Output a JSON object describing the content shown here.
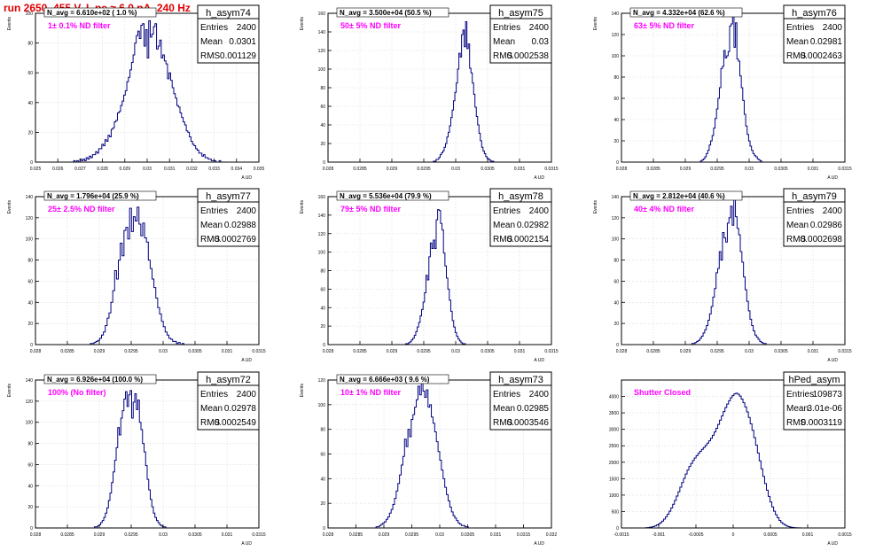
{
  "header": {
    "title": "run 2650,   455 V, I_pe ≈ 6.0 nA, 240 Hz",
    "title_color": "#e00000"
  },
  "labels": {
    "yaxis": "Events",
    "xaxis": "A UD",
    "entries": "Entries",
    "mean": "Mean",
    "rms": "RMS"
  },
  "colors": {
    "hist": "#000080",
    "annotation": "#ff00ff",
    "frame": "#000000",
    "grid": "#cccccc"
  },
  "chart_data": [
    {
      "type": "bar",
      "name": "h_asym74",
      "title": "h_asym74",
      "navg": "N_avg = 6.610e+02 ( 1.0 %)",
      "annotation": "1± 0.1% ND filter",
      "entries": "2400",
      "mean": "0.0301",
      "rms": "0.001129",
      "xlabel": "A UD",
      "ylabel": "Events",
      "xlim": [
        0.025,
        0.035
      ],
      "ylim": [
        0,
        100
      ],
      "xticks": [
        "0.025",
        "0.026",
        "0.027",
        "0.028",
        "0.029",
        "0.03",
        "0.031",
        "0.032",
        "0.033",
        "0.034",
        "0.035"
      ],
      "yticks": [
        "0",
        "20",
        "40",
        "60",
        "80",
        "100"
      ],
      "bins": {
        "lo": 0.0265,
        "hi": 0.0335,
        "n": 100,
        "values": [
          0,
          0,
          0,
          1,
          0,
          1,
          0,
          2,
          1,
          2,
          1,
          3,
          2,
          4,
          3,
          5,
          5,
          7,
          6,
          9,
          9,
          12,
          11,
          15,
          14,
          18,
          17,
          22,
          23,
          27,
          28,
          33,
          34,
          38,
          41,
          45,
          48,
          54,
          57,
          62,
          67,
          72,
          80,
          85,
          88,
          83,
          92,
          93,
          78,
          89,
          70,
          95,
          84,
          86,
          91,
          93,
          76,
          78,
          82,
          70,
          72,
          68,
          66,
          56,
          60,
          55,
          50,
          46,
          43,
          38,
          37,
          33,
          30,
          27,
          25,
          21,
          20,
          17,
          14,
          12,
          11,
          9,
          8,
          6,
          6,
          4,
          5,
          3,
          3,
          2,
          2,
          1,
          1,
          1,
          0,
          0,
          1,
          0,
          0,
          0
        ]
      }
    },
    {
      "type": "bar",
      "name": "h_asym75",
      "title": "h_asym75",
      "navg": "N_avg = 3.500e+04 (50.5 %)",
      "annotation": "50± 5% ND filter",
      "entries": "2400",
      "mean": "0.03",
      "rms": "0.0002538",
      "xlabel": "A UD",
      "ylabel": "Events",
      "xlim": [
        0.028,
        0.0315
      ],
      "ylim": [
        0,
        160
      ],
      "xticks": [
        "0.028",
        "0.0285",
        "0.029",
        "0.0295",
        "0.03",
        "0.0305",
        "0.031",
        "0.0315"
      ],
      "yticks": [
        "0",
        "20",
        "40",
        "60",
        "80",
        "100",
        "120",
        "140",
        "160"
      ],
      "bins": {
        "lo": 0.029,
        "hi": 0.0311,
        "n": 100,
        "values": [
          0,
          0,
          0,
          0,
          0,
          0,
          0,
          0,
          0,
          0,
          0,
          0,
          0,
          0,
          0,
          0,
          0,
          0,
          0,
          0,
          0,
          0,
          0,
          0,
          0,
          0,
          0,
          0,
          0,
          0,
          0,
          1,
          1,
          3,
          3,
          5,
          8,
          10,
          12,
          16,
          20,
          27,
          32,
          39,
          48,
          56,
          66,
          75,
          85,
          100,
          117,
          113,
          137,
          142,
          124,
          151,
          122,
          127,
          101,
          96,
          85,
          73,
          59,
          49,
          40,
          31,
          23,
          16,
          12,
          9,
          6,
          4,
          3,
          2,
          1,
          1,
          0,
          0,
          0,
          0,
          0,
          0,
          0,
          0,
          0,
          0,
          0,
          0,
          0,
          0,
          0,
          0,
          0,
          0,
          0,
          0,
          0,
          0,
          0,
          0
        ]
      }
    },
    {
      "type": "bar",
      "name": "h_asym76",
      "title": "h_asym76",
      "navg": "N_avg = 4.332e+04 (62.6 %)",
      "annotation": "63± 5% ND filter",
      "entries": "2400",
      "mean": "0.02981",
      "rms": "0.0002463",
      "xlabel": "A UD",
      "ylabel": "Events",
      "xlim": [
        0.028,
        0.0315
      ],
      "ylim": [
        0,
        140
      ],
      "xticks": [
        "0.028",
        "0.0285",
        "0.029",
        "0.0295",
        "0.03",
        "0.0305",
        "0.031",
        "0.0315"
      ],
      "yticks": [
        "0",
        "20",
        "40",
        "60",
        "80",
        "100",
        "120",
        "140"
      ],
      "bins": {
        "lo": 0.0291,
        "hi": 0.0307,
        "n": 70,
        "values": [
          0,
          0,
          0,
          0,
          0,
          0,
          1,
          2,
          3,
          5,
          8,
          11,
          16,
          20,
          25,
          32,
          41,
          50,
          60,
          70,
          88,
          90,
          105,
          98,
          100,
          104,
          128,
          130,
          139,
          108,
          131,
          97,
          95,
          81,
          70,
          58,
          45,
          34,
          26,
          20,
          15,
          11,
          8,
          6,
          5,
          3,
          2,
          1,
          0,
          0,
          0,
          0,
          0,
          0,
          0,
          0,
          0,
          0,
          0,
          0,
          0,
          0,
          0,
          0,
          0,
          0,
          0,
          0,
          0,
          0
        ]
      }
    },
    {
      "type": "bar",
      "name": "h_asym77",
      "title": "h_asym77",
      "navg": "N_avg = 1.796e+04 (25.9 %)",
      "annotation": "25± 2.5% ND filter",
      "entries": "2400",
      "mean": "0.02988",
      "rms": "0.0002769",
      "xlabel": "A UD",
      "ylabel": "Events",
      "xlim": [
        0.028,
        0.0315
      ],
      "ylim": [
        0,
        140
      ],
      "xticks": [
        "0.028",
        "0.0285",
        "0.029",
        "0.0295",
        "0.03",
        "0.0305",
        "0.031",
        "0.0315"
      ],
      "yticks": [
        "0",
        "20",
        "40",
        "60",
        "80",
        "100",
        "120",
        "140"
      ],
      "bins": {
        "lo": 0.0288,
        "hi": 0.031,
        "n": 75,
        "values": [
          0,
          0,
          1,
          1,
          2,
          3,
          4,
          6,
          9,
          12,
          18,
          25,
          30,
          40,
          51,
          70,
          62,
          80,
          96,
          84,
          108,
          111,
          100,
          129,
          107,
          121,
          117,
          130,
          114,
          103,
          115,
          101,
          97,
          80,
          72,
          62,
          54,
          44,
          35,
          29,
          22,
          17,
          12,
          9,
          6,
          5,
          3,
          3,
          1,
          2,
          0,
          1,
          0,
          0,
          0,
          0,
          0,
          0,
          0,
          0,
          0,
          0,
          0,
          0,
          0,
          0,
          0,
          0,
          0,
          0,
          0,
          0,
          0,
          0,
          0
        ]
      }
    },
    {
      "type": "bar",
      "name": "h_asym78",
      "title": "h_asym78",
      "navg": "N_avg = 5.536e+04 (79.9 %)",
      "annotation": "79± 5% ND filter",
      "entries": "2400",
      "mean": "0.02982",
      "rms": "0.0002154",
      "xlabel": "A UD",
      "ylabel": "Events",
      "xlim": [
        0.028,
        0.0315
      ],
      "ylim": [
        0,
        160
      ],
      "xticks": [
        "0.028",
        "0.0285",
        "0.029",
        "0.0295",
        "0.03",
        "0.0305",
        "0.031",
        "0.0315"
      ],
      "yticks": [
        "0",
        "20",
        "40",
        "60",
        "80",
        "100",
        "120",
        "140",
        "160"
      ],
      "bins": {
        "lo": 0.0291,
        "hi": 0.0307,
        "n": 70,
        "values": [
          0,
          0,
          0,
          0,
          0,
          1,
          1,
          2,
          3,
          5,
          7,
          10,
          14,
          19,
          24,
          31,
          38,
          46,
          56,
          75,
          70,
          95,
          110,
          104,
          113,
          104,
          135,
          146,
          145,
          131,
          124,
          99,
          85,
          72,
          60,
          48,
          36,
          26,
          19,
          13,
          9,
          6,
          4,
          2,
          1,
          1,
          0,
          0,
          0,
          0,
          0,
          0,
          0,
          0,
          0,
          0,
          0,
          0,
          0,
          0,
          0,
          0,
          0,
          0,
          0,
          0,
          0,
          0,
          0,
          0
        ]
      }
    },
    {
      "type": "bar",
      "name": "h_asym79",
      "title": "h_asym79",
      "navg": "N_avg = 2.812e+04 (40.6 %)",
      "annotation": "40± 4% ND filter",
      "entries": "2400",
      "mean": "0.02986",
      "rms": "0.0002698",
      "xlabel": "A UD",
      "ylabel": "Events",
      "xlim": [
        0.028,
        0.0315
      ],
      "ylim": [
        0,
        140
      ],
      "xticks": [
        "0.028",
        "0.0285",
        "0.029",
        "0.0295",
        "0.03",
        "0.0305",
        "0.031",
        "0.0315"
      ],
      "yticks": [
        "0",
        "20",
        "40",
        "60",
        "80",
        "100",
        "120",
        "140"
      ],
      "bins": {
        "lo": 0.029,
        "hi": 0.0309,
        "n": 75,
        "values": [
          0,
          0,
          0,
          0,
          1,
          1,
          2,
          3,
          4,
          6,
          8,
          11,
          14,
          18,
          23,
          29,
          36,
          45,
          53,
          68,
          72,
          88,
          80,
          106,
          101,
          97,
          115,
          120,
          131,
          113,
          138,
          121,
          110,
          104,
          88,
          78,
          64,
          52,
          41,
          32,
          24,
          18,
          13,
          9,
          7,
          5,
          3,
          2,
          1,
          1,
          0,
          0,
          0,
          0,
          0,
          0,
          0,
          0,
          0,
          0,
          0,
          0,
          0,
          0,
          0,
          0,
          0,
          0,
          0,
          0,
          0,
          0,
          0,
          0,
          0
        ]
      }
    },
    {
      "type": "bar",
      "name": "h_asym72",
      "title": "h_asym72",
      "navg": "N_avg = 6.926e+04 (100.0 %)",
      "annotation": "100% (No filter)",
      "entries": "2400",
      "mean": "0.02978",
      "rms": "0.0002549",
      "xlabel": "A UD",
      "ylabel": "Events",
      "xlim": [
        0.028,
        0.0315
      ],
      "ylim": [
        0,
        140
      ],
      "xticks": [
        "0.028",
        "0.0285",
        "0.029",
        "0.0295",
        "0.03",
        "0.0305",
        "0.031",
        "0.0315"
      ],
      "yticks": [
        "0",
        "20",
        "40",
        "60",
        "80",
        "100",
        "120",
        "140"
      ],
      "bins": {
        "lo": 0.0289,
        "hi": 0.0306,
        "n": 70,
        "values": [
          0,
          1,
          1,
          2,
          3,
          5,
          7,
          10,
          14,
          19,
          26,
          33,
          43,
          53,
          64,
          76,
          95,
          88,
          104,
          111,
          122,
          129,
          115,
          126,
          130,
          104,
          119,
          127,
          112,
          121,
          100,
          93,
          80,
          72,
          59,
          46,
          36,
          27,
          20,
          14,
          10,
          7,
          5,
          3,
          2,
          1,
          1,
          0,
          0,
          0,
          0,
          0,
          0,
          0,
          0,
          0,
          0,
          0,
          0,
          0,
          0,
          0,
          0,
          0,
          0,
          0,
          0,
          0,
          0,
          0
        ]
      }
    },
    {
      "type": "bar",
      "name": "h_asym73",
      "title": "h_asym73",
      "navg": "N_avg = 6.666e+03 ( 9.6 %)",
      "annotation": "10± 1% ND filter",
      "entries": "2400",
      "mean": "0.02985",
      "rms": "0.0003546",
      "xlabel": "A UD",
      "ylabel": "Events",
      "xlim": [
        0.028,
        0.032
      ],
      "ylim": [
        0,
        120
      ],
      "xticks": [
        "0.028",
        "0.0285",
        "0.029",
        "0.0295",
        "0.03",
        "0.0305",
        "0.031",
        "0.0315",
        "0.032"
      ],
      "yticks": [
        "0",
        "20",
        "40",
        "60",
        "80",
        "100",
        "120"
      ],
      "bins": {
        "lo": 0.0288,
        "hi": 0.0312,
        "n": 80,
        "values": [
          0,
          0,
          1,
          1,
          2,
          3,
          4,
          5,
          7,
          9,
          12,
          15,
          19,
          24,
          30,
          36,
          43,
          51,
          58,
          72,
          66,
          80,
          74,
          88,
          92,
          98,
          104,
          115,
          108,
          120,
          111,
          106,
          112,
          98,
          100,
          90,
          85,
          78,
          70,
          62,
          55,
          47,
          40,
          33,
          27,
          22,
          17,
          13,
          10,
          8,
          6,
          4,
          3,
          2,
          2,
          1,
          1,
          0,
          0,
          0,
          0,
          0,
          0,
          0,
          0,
          0,
          0,
          0,
          0,
          0,
          0,
          0,
          0,
          0,
          0,
          0,
          0,
          0,
          0,
          0
        ]
      }
    },
    {
      "type": "bar",
      "name": "hPed_asym",
      "title": "hPed_asym",
      "navg": "",
      "annotation": "Shutter Closed",
      "entries": "109873",
      "mean": "3.01e-06",
      "rms": "0.0003119",
      "xlabel": "A UD",
      "ylabel": "",
      "xlim": [
        -0.0015,
        0.0015
      ],
      "ylim": [
        0,
        4500
      ],
      "xticks": [
        "-0.0015",
        "-0.001",
        "-0.0005",
        "0",
        "0.0005",
        "0.001",
        "0.0015"
      ],
      "yticks": [
        "0",
        "500",
        "1000",
        "1500",
        "2000",
        "2500",
        "3000",
        "3500",
        "4000"
      ],
      "bins": {
        "lo": -0.0012,
        "hi": 0.0011,
        "n": 95,
        "values": [
          0,
          5,
          10,
          20,
          30,
          45,
          65,
          90,
          120,
          160,
          210,
          270,
          340,
          420,
          510,
          610,
          720,
          840,
          970,
          1100,
          1240,
          1380,
          1510,
          1640,
          1760,
          1870,
          1960,
          2050,
          2130,
          2200,
          2270,
          2330,
          2390,
          2450,
          2510,
          2580,
          2650,
          2730,
          2820,
          2920,
          3030,
          3150,
          3280,
          3410,
          3540,
          3660,
          3770,
          3870,
          3960,
          4030,
          4080,
          4100,
          4070,
          4010,
          3920,
          3810,
          3680,
          3530,
          3360,
          3170,
          2970,
          2750,
          2520,
          2280,
          2040,
          1800,
          1570,
          1350,
          1150,
          960,
          790,
          640,
          510,
          400,
          310,
          230,
          170,
          125,
          90,
          62,
          42,
          28,
          18,
          11,
          7,
          4,
          2,
          1,
          1,
          0,
          0,
          0,
          0,
          0,
          0
        ]
      }
    }
  ]
}
